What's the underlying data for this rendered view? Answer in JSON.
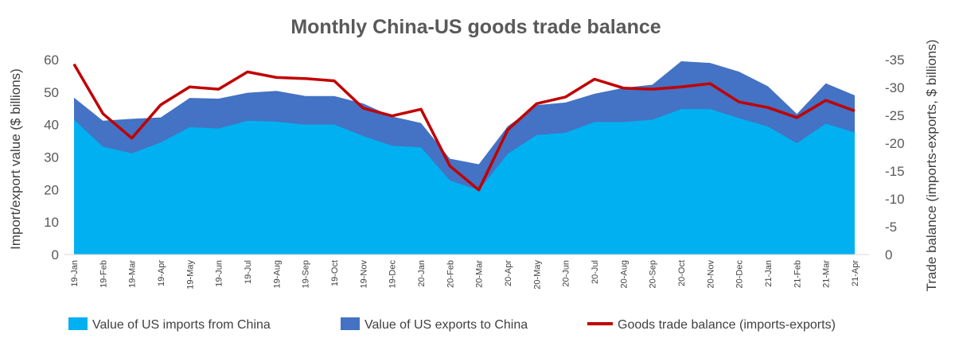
{
  "chart_data": {
    "type": "area",
    "title": "Monthly China-US goods trade balance",
    "ylabel": "Import/export value ($ billions)",
    "y2label": "Trade balance (imports-exports, $ billions)",
    "ylim": [
      0,
      60
    ],
    "yticks": [
      "0",
      "10",
      "20",
      "30",
      "40",
      "50",
      "60"
    ],
    "y2lim": [
      0,
      -35
    ],
    "y2ticks": [
      "0",
      "-5",
      "-10",
      "-15",
      "-20",
      "-25",
      "-30",
      "-35"
    ],
    "grid": false,
    "legend_position": "bottom",
    "categories": [
      "19-Jan",
      "19-Feb",
      "19-Mar",
      "19-Apr",
      "19-May",
      "19-Jun",
      "19-Jul",
      "19-Aug",
      "19-Sep",
      "19-Oct",
      "19-Nov",
      "19-Dec",
      "20-Jan",
      "20-Feb",
      "20-Mar",
      "20-Apr",
      "20-May",
      "20-Jun",
      "20-Jul",
      "20-Aug",
      "20-Sep",
      "20-Oct",
      "20-Nov",
      "20-Dec",
      "21-Jan",
      "21-Feb",
      "21-Mar",
      "21-Apr"
    ],
    "series": [
      {
        "name": "Value of US imports from China",
        "type": "area",
        "axis": "left",
        "color": "#00b0f0",
        "values": [
          41.5,
          33.2,
          31.2,
          34.5,
          39.2,
          38.8,
          41.2,
          40.9,
          40.0,
          40.0,
          36.5,
          33.5,
          33.0,
          22.8,
          19.8,
          31.0,
          36.8,
          37.5,
          40.8,
          40.8,
          41.5,
          44.8,
          44.8,
          42.0,
          39.4,
          34.3,
          40.3,
          37.6
        ]
      },
      {
        "name": "Value of US exports to China",
        "type": "area",
        "axis": "left",
        "color": "#4472c4",
        "values": [
          48.3,
          41.2,
          41.8,
          42.2,
          48.2,
          48.0,
          49.8,
          50.4,
          48.8,
          48.8,
          46.5,
          42.5,
          40.5,
          29.5,
          27.8,
          39.5,
          46.0,
          46.8,
          49.5,
          51.3,
          52.3,
          59.5,
          59.0,
          56.3,
          51.8,
          43.3,
          52.7,
          49.0
        ]
      },
      {
        "name": "Goods trade balance (imports-exports)",
        "type": "line",
        "axis": "right",
        "color": "#c00000",
        "values": [
          -34.2,
          -25.3,
          -20.9,
          -26.9,
          -30.1,
          -29.7,
          -32.8,
          -31.8,
          -31.6,
          -31.2,
          -26.3,
          -24.9,
          -26.1,
          -15.9,
          -11.6,
          -22.4,
          -27.1,
          -28.3,
          -31.5,
          -29.9,
          -29.7,
          -30.1,
          -30.7,
          -27.4,
          -26.4,
          -24.6,
          -27.7,
          -25.8
        ]
      }
    ]
  }
}
